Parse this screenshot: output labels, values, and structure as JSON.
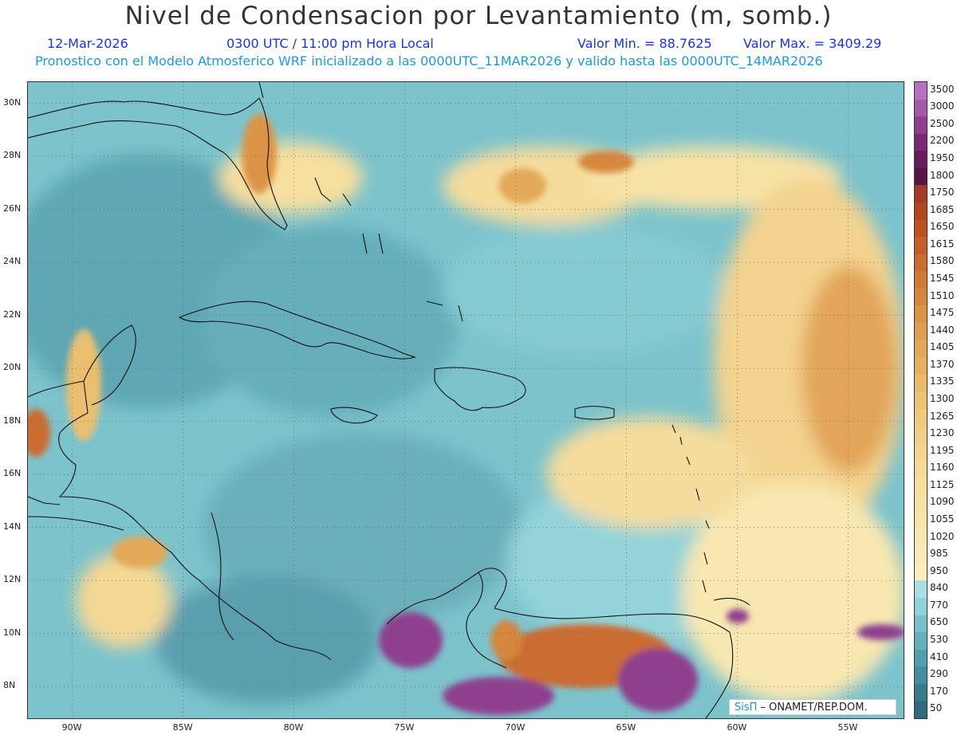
{
  "header": {
    "title": "Nivel de Condensacion por Levantamiento (m, somb.)",
    "date": "12-Mar-2026",
    "time": "0300 UTC / 11:00 pm Hora Local",
    "vmin": "Valor Min. = 88.7625",
    "vmax": "Valor Max. = 3409.29",
    "forecast": "Pronostico con el Modelo Atmosferico WRF inicializado a las 0000UTC_11MAR2026 y valido hasta las  0000UTC_14MAR2026"
  },
  "map": {
    "lon_range": [
      -92,
      -52.5
    ],
    "lat_range": [
      6.8,
      30.8
    ],
    "lat_labels": [
      "30N",
      "28N",
      "26N",
      "24N",
      "22N",
      "20N",
      "18N",
      "16N",
      "14N",
      "12N",
      "10N",
      "8N"
    ],
    "lon_labels": [
      "90W",
      "85W",
      "80W",
      "75W",
      "70W",
      "65W",
      "60W",
      "55W"
    ],
    "grid": true
  },
  "colorbar": {
    "labels": [
      "3500",
      "3000",
      "2500",
      "2200",
      "1950",
      "1800",
      "1750",
      "1685",
      "1650",
      "1615",
      "1580",
      "1545",
      "1510",
      "1475",
      "1440",
      "1405",
      "1370",
      "1335",
      "1300",
      "1265",
      "1230",
      "1195",
      "1160",
      "1125",
      "1090",
      "1055",
      "1020",
      "985",
      "950",
      "840",
      "770",
      "650",
      "530",
      "410",
      "290",
      "170",
      "50"
    ],
    "colors": [
      "#b572c2",
      "#a25aa8",
      "#8e3f8e",
      "#7a2a73",
      "#671d5c",
      "#571447",
      "#a33b26",
      "#b3461e",
      "#bd5221",
      "#c55e2a",
      "#cb6c30",
      "#d17a36",
      "#d6873e",
      "#db9446",
      "#df9f4f",
      "#e3a958",
      "#e6b262",
      "#e9bb6b",
      "#ecc275",
      "#eec97e",
      "#f0cf86",
      "#f2d58f",
      "#f4da97",
      "#f5de9e",
      "#f6e2a5",
      "#f7e5ab",
      "#f8e8b1",
      "#f9ebb7",
      "#faeec0",
      "#a6e0e6",
      "#8fd2da",
      "#78c1cb",
      "#64b0bc",
      "#539ead",
      "#458c9c",
      "#3a7b8b",
      "#306c7b"
    ]
  },
  "credit": {
    "logo": "SisΠ",
    "text": " – ONAMET/REP.DOM."
  }
}
